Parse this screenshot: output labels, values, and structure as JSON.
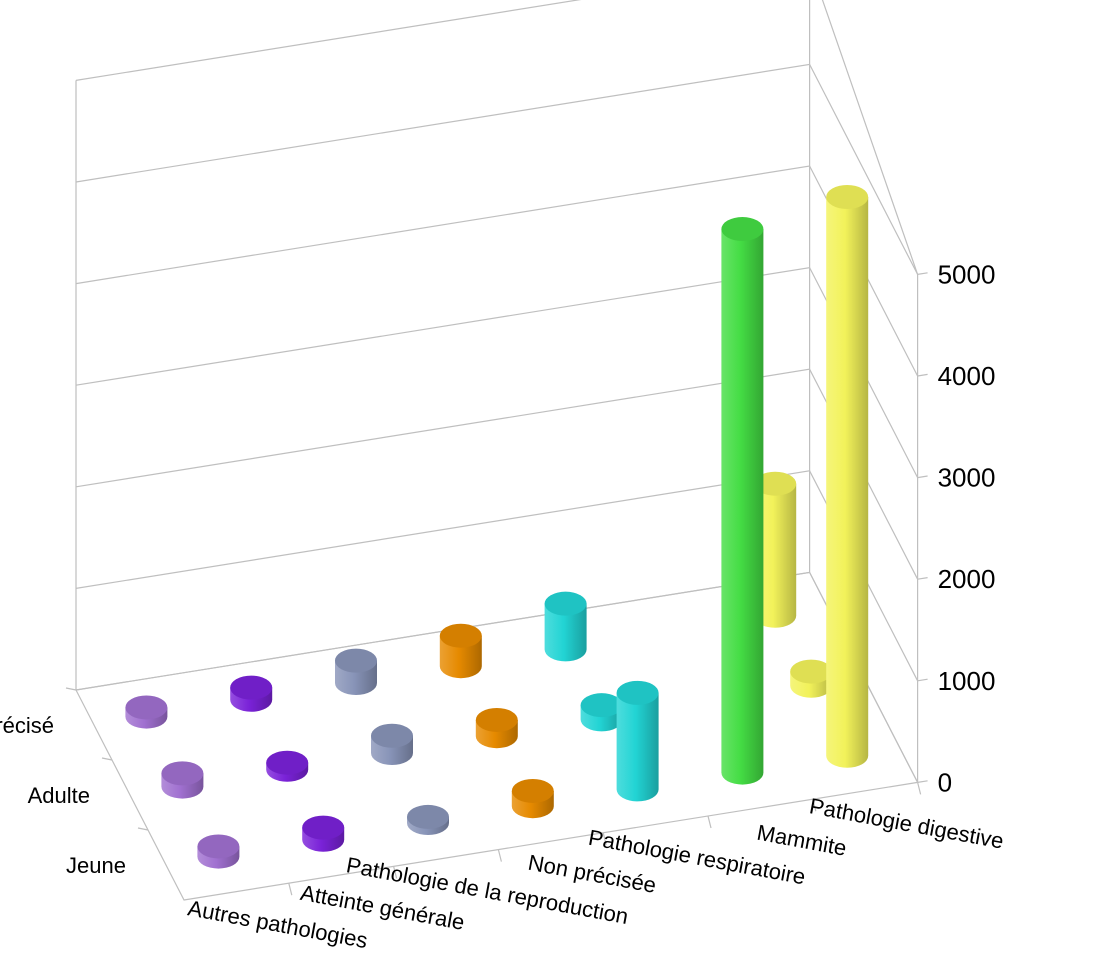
{
  "chart_data": {
    "type": "bar",
    "chart_style": "3d-cylinder",
    "categories": [
      "Autres pathologies",
      "Atteinte générale",
      "Pathologie de la reproduction",
      "Non précisée",
      "Pathologie respiratoire",
      "Mammite",
      "Pathologie digestive"
    ],
    "series": [
      {
        "name": "Jeune",
        "values": [
          100,
          120,
          60,
          150,
          950,
          5350,
          5500
        ]
      },
      {
        "name": "Adulte",
        "values": [
          130,
          70,
          170,
          160,
          140,
          0,
          140
        ]
      },
      {
        "name": "Non précisé",
        "values": [
          90,
          120,
          220,
          300,
          450,
          0,
          1300
        ]
      }
    ],
    "category_colors": [
      "#a070d0",
      "#7a22d8",
      "#8894b8",
      "#e68a00",
      "#22d4d4",
      "#44dd44",
      "#f2f25a"
    ],
    "ylim": [
      0,
      5000
    ],
    "yticks": [
      "0",
      "1000",
      "2000",
      "3000",
      "4000",
      "5000"
    ],
    "grid": true,
    "title": "",
    "xlabel": "",
    "ylabel": ""
  }
}
